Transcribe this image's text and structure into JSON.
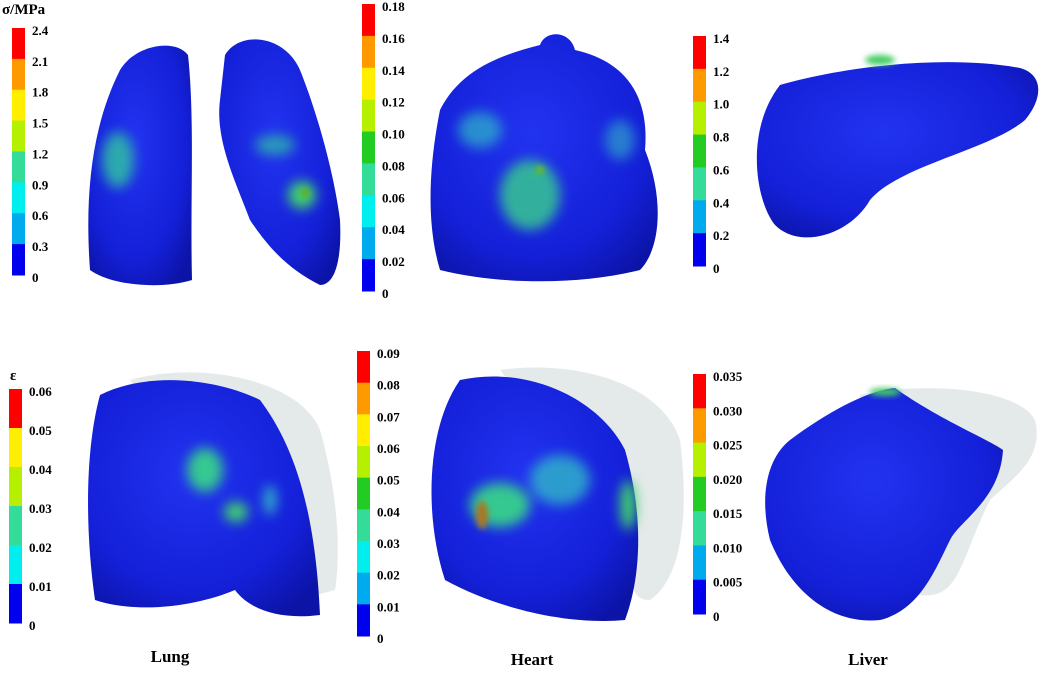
{
  "top_row": {
    "colorbars": [
      {
        "title": "σ/MPa",
        "ticks": [
          "2.4",
          "2.1",
          "1.8",
          "1.5",
          "1.2",
          "0.9",
          "0.6",
          "0.3",
          "0"
        ]
      },
      {
        "ticks": [
          "0.18",
          "0.16",
          "0.14",
          "0.12",
          "0.10",
          "0.08",
          "0.06",
          "0.04",
          "0.02",
          "0"
        ]
      },
      {
        "ticks": [
          "1.4",
          "1.2",
          "1.0",
          "0.8",
          "0.6",
          "0.4",
          "0.2",
          "0"
        ]
      }
    ]
  },
  "bottom_row": {
    "colorbars": [
      {
        "title": "ε",
        "ticks": [
          "0.06",
          "0.05",
          "0.04",
          "0.03",
          "0.02",
          "0.01",
          "0"
        ]
      },
      {
        "ticks": [
          "0.09",
          "0.08",
          "0.07",
          "0.06",
          "0.05",
          "0.04",
          "0.03",
          "0.02",
          "0.01",
          "0"
        ]
      },
      {
        "ticks": [
          "0.035",
          "0.030",
          "0.025",
          "0.020",
          "0.015",
          "0.010",
          "0.005",
          "0"
        ]
      }
    ]
  },
  "organ_labels": [
    "Lung",
    "Heart",
    "Liver"
  ]
}
